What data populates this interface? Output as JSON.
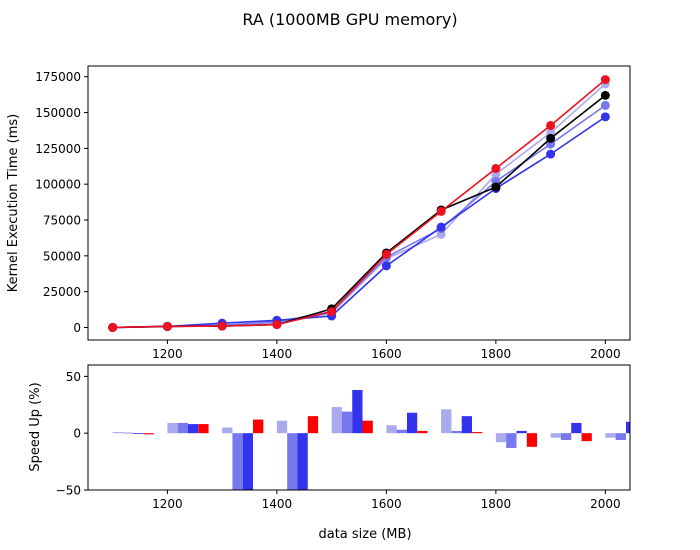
{
  "figure": {
    "title": "RA (1000MB GPU memory)",
    "xlabel": "data size (MB)"
  },
  "chart_data": [
    {
      "type": "line",
      "ylabel": "Kernel Execution Time (ms)",
      "xlim": [
        1055,
        2045
      ],
      "ylim": [
        -8750,
        182500
      ],
      "x": [
        1100,
        1200,
        1300,
        1400,
        1500,
        1600,
        1700,
        1800,
        1900,
        2000
      ],
      "xticks": [
        1200,
        1400,
        1600,
        1800,
        2000
      ],
      "yticks": [
        0,
        25000,
        50000,
        75000,
        100000,
        125000,
        150000,
        175000
      ],
      "ytick_labels": [
        "0",
        "25000",
        "50000",
        "75000",
        "100000",
        "125000",
        "150000",
        "175000"
      ],
      "series": [
        {
          "color": "#aaaaee",
          "values": [
            0,
            500,
            1500,
            3000,
            10000,
            48000,
            65000,
            107000,
            136000,
            170000
          ]
        },
        {
          "color": "#7777ee",
          "values": [
            0,
            600,
            1500,
            4000,
            11000,
            49000,
            69000,
            102000,
            128000,
            155000
          ]
        },
        {
          "color": "#3333ee",
          "values": [
            0,
            700,
            3000,
            5000,
            8000,
            43000,
            70000,
            97000,
            121000,
            147000
          ]
        },
        {
          "color": "#000000",
          "values": [
            0,
            800,
            1000,
            2000,
            13000,
            52000,
            82000,
            98000,
            132000,
            162000
          ]
        },
        {
          "color": "#ee1122",
          "values": [
            0,
            700,
            1000,
            2000,
            11000,
            51000,
            81000,
            111000,
            141000,
            173000
          ]
        }
      ]
    },
    {
      "type": "bar",
      "ylabel": "Speed Up (%)",
      "xlim": [
        1055,
        2045
      ],
      "ylim": [
        -50,
        60
      ],
      "x": [
        1100,
        1200,
        1300,
        1400,
        1500,
        1600,
        1700,
        1800,
        1900,
        2000
      ],
      "xticks": [
        1200,
        1400,
        1600,
        1800,
        2000
      ],
      "xtick_labels": [
        "1200",
        "1400",
        "1600",
        "1800",
        "2000"
      ],
      "yticks": [
        -50,
        0,
        50
      ],
      "ytick_labels": [
        "−50",
        "0",
        "50"
      ],
      "series": [
        {
          "color": "#aaaaee",
          "values": [
            1,
            9,
            5,
            11,
            23,
            7,
            21,
            -8,
            -4,
            -4
          ]
        },
        {
          "color": "#7777ee",
          "values": [
            0.5,
            9,
            -60,
            -60,
            19,
            3,
            2,
            -13,
            -6,
            -6
          ]
        },
        {
          "color": "#3333ee",
          "values": [
            0,
            8,
            -60,
            -60,
            38,
            18,
            15,
            2,
            9,
            10
          ]
        },
        {
          "color": "#ff0000",
          "values": [
            -1,
            8,
            12,
            15,
            11,
            2,
            1,
            -12,
            -7,
            -6
          ]
        }
      ]
    }
  ]
}
